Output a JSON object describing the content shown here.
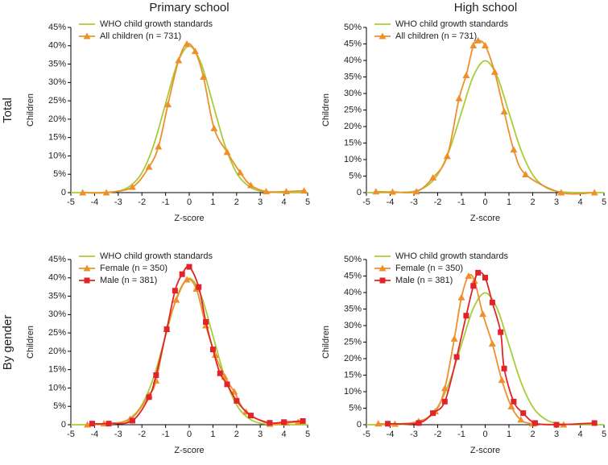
{
  "columns": [
    "Primary school",
    "High school"
  ],
  "rows": [
    "Total",
    "By gender"
  ],
  "chart_data": [
    {
      "type": "line",
      "xlabel": "Z-score",
      "ylabel": "Children",
      "xlim": [
        -5,
        5
      ],
      "xticks": [
        -5,
        -4,
        -3,
        -2,
        -1,
        0,
        1,
        2,
        3,
        4,
        5
      ],
      "ylim": [
        0,
        45
      ],
      "yticks": [
        0,
        {
          "value": 5,
          "label": "5%"
        },
        {
          "value": 10,
          "label": "10%"
        },
        {
          "value": 15,
          "label": "15%"
        },
        {
          "value": 20,
          "label": "20%"
        },
        {
          "value": 25,
          "label": "25%"
        },
        {
          "value": 30,
          "label": "30%"
        },
        {
          "value": 35,
          "label": "35%"
        },
        {
          "value": 40,
          "label": "40%"
        },
        {
          "value": 45,
          "label": "45%"
        }
      ],
      "series": [
        {
          "name": "WHO child growth standards",
          "color": "#a8cc38",
          "x": [
            -5,
            -4.5,
            -4,
            -3.5,
            -3,
            -2.5,
            -2,
            -1.5,
            -1,
            -0.5,
            0,
            0.5,
            1,
            1.5,
            2,
            2.5,
            3,
            3.5,
            4,
            4.5,
            5
          ],
          "values": [
            0,
            0,
            0,
            0.1,
            0.4,
            1.8,
            5.4,
            13,
            24.2,
            35.2,
            39.9,
            35.2,
            24.2,
            13,
            5.4,
            1.8,
            0.4,
            0.1,
            0,
            0,
            0
          ]
        },
        {
          "name": "All children (n = 731)",
          "color": "#ef8f2c",
          "marker": "triangle",
          "x": [
            -4.5,
            -3.5,
            -2.4,
            -1.7,
            -1.3,
            -0.9,
            -0.45,
            -0.1,
            0.25,
            0.6,
            1.05,
            1.6,
            2.15,
            2.6,
            3.25,
            4.1,
            4.85
          ],
          "values": [
            0,
            0,
            1.5,
            7,
            12.5,
            24,
            36,
            40.5,
            38.5,
            31.5,
            17.5,
            11,
            5.5,
            2,
            0.3,
            0.3,
            0.5
          ]
        }
      ]
    },
    {
      "type": "line",
      "xlabel": "Z-score",
      "ylabel": "Children",
      "xlim": [
        -5,
        5
      ],
      "xticks": [
        -5,
        -4,
        -3,
        -2,
        -1,
        0,
        1,
        2,
        3,
        4,
        5
      ],
      "ylim": [
        0,
        50
      ],
      "yticks": [
        0,
        {
          "value": 5,
          "label": "5%"
        },
        {
          "value": 10,
          "label": "10%"
        },
        {
          "value": 15,
          "label": "15%"
        },
        {
          "value": 20,
          "label": "20%"
        },
        {
          "value": 25,
          "label": "25%"
        },
        {
          "value": 30,
          "label": "30%"
        },
        {
          "value": 35,
          "label": "35%"
        },
        {
          "value": 40,
          "label": "40%"
        },
        {
          "value": 45,
          "label": "45%"
        },
        {
          "value": 50,
          "label": "50%"
        }
      ],
      "series": [
        {
          "name": "WHO child growth standards",
          "color": "#a8cc38",
          "x": [
            -5,
            -4.5,
            -4,
            -3.5,
            -3,
            -2.5,
            -2,
            -1.5,
            -1,
            -0.5,
            0,
            0.5,
            1,
            1.5,
            2,
            2.5,
            3,
            3.5,
            4,
            4.5,
            5
          ],
          "values": [
            0,
            0,
            0,
            0.1,
            0.4,
            1.8,
            5.4,
            13,
            24.2,
            35.2,
            39.9,
            35.2,
            24.2,
            13,
            5.4,
            1.8,
            0.4,
            0.1,
            0,
            0,
            0
          ]
        },
        {
          "name": "All children (n = 731)",
          "color": "#ef8f2c",
          "marker": "triangle",
          "x": [
            -4.6,
            -3.9,
            -2.9,
            -2.2,
            -1.6,
            -1.1,
            -0.8,
            -0.5,
            -0.3,
            0,
            0.4,
            0.8,
            1.2,
            1.7,
            3.2,
            4.6
          ],
          "values": [
            0.3,
            0.2,
            0.3,
            4.5,
            11,
            28.5,
            35.5,
            44.5,
            46,
            44.5,
            36.5,
            24.5,
            13,
            5.5,
            0,
            0
          ]
        }
      ]
    },
    {
      "type": "line",
      "xlabel": "Z-score",
      "ylabel": "Children",
      "xlim": [
        -5,
        5
      ],
      "xticks": [
        -5,
        -4,
        -3,
        -2,
        -1,
        0,
        1,
        2,
        3,
        4,
        5
      ],
      "ylim": [
        0,
        45
      ],
      "yticks": [
        0,
        {
          "value": 5,
          "label": "5%"
        },
        {
          "value": 10,
          "label": "10%"
        },
        {
          "value": 15,
          "label": "15%"
        },
        {
          "value": 20,
          "label": "20%"
        },
        {
          "value": 25,
          "label": "25%"
        },
        {
          "value": 30,
          "label": "30%"
        },
        {
          "value": 35,
          "label": "35%"
        },
        {
          "value": 40,
          "label": "40%"
        },
        {
          "value": 45,
          "label": "45%"
        }
      ],
      "series": [
        {
          "name": "WHO child growth standards",
          "color": "#a8cc38",
          "x": [
            -5,
            -4.5,
            -4,
            -3.5,
            -3,
            -2.5,
            -2,
            -1.5,
            -1,
            -0.5,
            0,
            0.5,
            1,
            1.5,
            2,
            2.5,
            3,
            3.5,
            4,
            4.5,
            5
          ],
          "values": [
            0,
            0,
            0,
            0.1,
            0.4,
            1.8,
            5.4,
            13,
            24.2,
            35.2,
            39.9,
            35.2,
            24.2,
            13,
            5.4,
            1.8,
            0.4,
            0.1,
            0,
            0,
            0
          ]
        },
        {
          "name": "Female (n = 350)",
          "color": "#ef8f2c",
          "marker": "triangle",
          "x": [
            -4.3,
            -3.6,
            -2.5,
            -1.7,
            -1.4,
            -0.95,
            -0.55,
            -0.1,
            0.3,
            0.7,
            1.1,
            1.5,
            1.9,
            2.4,
            3.4,
            4.1,
            4.6
          ],
          "values": [
            0,
            0.3,
            1.5,
            8,
            12,
            26,
            34,
            39.5,
            37,
            27,
            19,
            13,
            9,
            3.5,
            0.2,
            0.5,
            0.7
          ]
        },
        {
          "name": "Male (n = 381)",
          "color": "#e0242a",
          "marker": "square",
          "x": [
            -4.1,
            -3.4,
            -2.4,
            -1.7,
            -1.4,
            -0.95,
            -0.6,
            -0.3,
            0,
            0.4,
            0.7,
            1,
            1.3,
            1.6,
            2,
            2.6,
            3.4,
            4,
            4.8
          ],
          "values": [
            0.3,
            0.3,
            1.1,
            7.5,
            13.5,
            26,
            36.5,
            41,
            43,
            37.5,
            28,
            20.5,
            14,
            11,
            6.5,
            2.5,
            0.5,
            0.7,
            1
          ]
        }
      ]
    },
    {
      "type": "line",
      "xlabel": "Z-score",
      "ylabel": "Children",
      "xlim": [
        -5,
        5
      ],
      "xticks": [
        -5,
        -4,
        -3,
        -2,
        -1,
        0,
        1,
        2,
        3,
        4,
        5
      ],
      "ylim": [
        0,
        50
      ],
      "yticks": [
        0,
        {
          "value": 5,
          "label": "5%"
        },
        {
          "value": 10,
          "label": "10%"
        },
        {
          "value": 15,
          "label": "15%"
        },
        {
          "value": 20,
          "label": "20%"
        },
        {
          "value": 25,
          "label": "25%"
        },
        {
          "value": 30,
          "label": "30%"
        },
        {
          "value": 35,
          "label": "35%"
        },
        {
          "value": 40,
          "label": "40%"
        },
        {
          "value": 45,
          "label": "45%"
        },
        {
          "value": 50,
          "label": "50%"
        }
      ],
      "series": [
        {
          "name": "WHO child growth standards",
          "color": "#a8cc38",
          "x": [
            -5,
            -4.5,
            -4,
            -3.5,
            -3,
            -2.5,
            -2,
            -1.5,
            -1,
            -0.5,
            0,
            0.5,
            1,
            1.5,
            2,
            2.5,
            3,
            3.5,
            4,
            4.5,
            5
          ],
          "values": [
            0,
            0,
            0,
            0.1,
            0.4,
            1.8,
            5.4,
            13,
            24.2,
            35.2,
            39.9,
            35.2,
            24.2,
            13,
            5.4,
            1.8,
            0.4,
            0.1,
            0,
            0,
            0
          ]
        },
        {
          "name": "Female (n = 350)",
          "color": "#ef8f2c",
          "marker": "triangle",
          "x": [
            -4.5,
            -3.8,
            -2.8,
            -2.1,
            -1.7,
            -1.3,
            -1,
            -0.7,
            -0.45,
            -0.1,
            0.3,
            0.7,
            1.1,
            1.5,
            2,
            3.3
          ],
          "values": [
            0.3,
            0.2,
            1,
            4,
            11,
            26,
            38.5,
            45,
            43.5,
            33.5,
            24.5,
            13.5,
            5.5,
            1.5,
            0.3,
            0
          ]
        },
        {
          "name": "Male (n = 381)",
          "color": "#e0242a",
          "marker": "square",
          "x": [
            -4.1,
            -2.8,
            -2.2,
            -1.7,
            -1.2,
            -0.8,
            -0.5,
            -0.3,
            0,
            0.3,
            0.65,
            0.8,
            1.2,
            1.6,
            2.1,
            3,
            4.6
          ],
          "values": [
            0.3,
            0.5,
            3.5,
            7,
            20.5,
            33,
            42,
            46,
            44.5,
            37,
            28,
            17,
            7,
            3.5,
            0.5,
            0,
            0.5
          ]
        }
      ]
    }
  ]
}
